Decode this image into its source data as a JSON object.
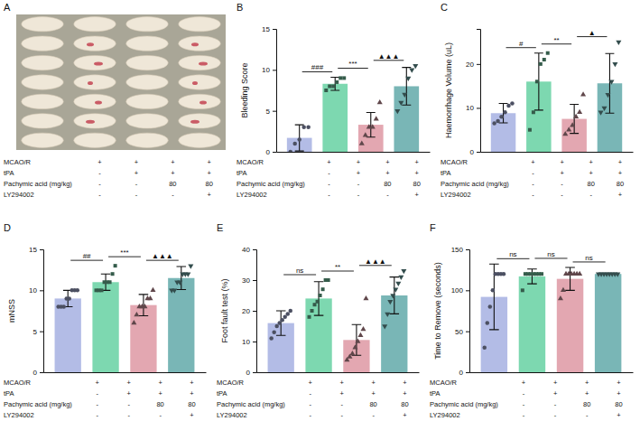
{
  "image_panel": {
    "panel": "A"
  },
  "conditions": {
    "rows": [
      {
        "label": "MCAO/R",
        "cells": [
          "+",
          "+",
          "+",
          "+"
        ]
      },
      {
        "label": "tPA",
        "cells": [
          "-",
          "+",
          "+",
          "+"
        ]
      },
      {
        "label": "Pachymic acid (mg/kg)",
        "cells": [
          "-",
          "-",
          "80",
          "80"
        ]
      },
      {
        "label": "LY294002",
        "cells": [
          "-",
          "-",
          "-",
          "+"
        ]
      }
    ]
  },
  "chart_data": [
    {
      "panel": "B",
      "type": "bar",
      "y_label": "Bleeding Score",
      "categories": [
        null,
        null,
        null,
        null
      ],
      "values": [
        1.7,
        8.3,
        3.3,
        8.0
      ],
      "errors": [
        1.6,
        0.8,
        1.5,
        2.3
      ],
      "points": [
        [
          0,
          1,
          1.5,
          3,
          3
        ],
        [
          7.5,
          8,
          8,
          8.5,
          9,
          9
        ],
        [
          1,
          2,
          3,
          3,
          4,
          6
        ],
        [
          5,
          6,
          7,
          9,
          10,
          10.5
        ]
      ],
      "colors": [
        "#b3bce6",
        "#7dd8b0",
        "#e3a7b1",
        "#79b6b6"
      ],
      "ylim": [
        0,
        15
      ],
      "yticks": [
        0,
        5,
        10,
        15
      ],
      "tick_labels": "y",
      "annotations": [
        {
          "from": 0,
          "to": 1,
          "label": "###"
        },
        {
          "from": 1,
          "to": 2,
          "label": "***"
        },
        {
          "from": 2,
          "to": 3,
          "label": "▲▲▲"
        }
      ]
    },
    {
      "panel": "C",
      "type": "bar",
      "y_label": "Haemorrhage Volume (uL)",
      "categories": [
        null,
        null,
        null,
        null
      ],
      "values": [
        8.8,
        16,
        7.5,
        15.6
      ],
      "errors": [
        2.2,
        6.5,
        3.3,
        6.8
      ],
      "points": [
        [
          6.5,
          7,
          8,
          9,
          10.5,
          11
        ],
        [
          5,
          9,
          16,
          20,
          21,
          22.5
        ],
        [
          4,
          5,
          6,
          8,
          9,
          13
        ],
        [
          9,
          10,
          13,
          16,
          20,
          25
        ]
      ],
      "colors": [
        "#b3bce6",
        "#7dd8b0",
        "#e3a7b1",
        "#79b6b6"
      ],
      "ylim": [
        0,
        28
      ],
      "yticks": [
        0,
        10,
        20
      ],
      "tick_labels": "y",
      "annotations": [
        {
          "from": 0,
          "to": 1,
          "label": "#"
        },
        {
          "from": 1,
          "to": 2,
          "label": "**"
        },
        {
          "from": 2,
          "to": 3,
          "label": "▲"
        }
      ]
    },
    {
      "panel": "D",
      "type": "bar",
      "y_label": "mNSS",
      "categories": [
        null,
        null,
        null,
        null
      ],
      "values": [
        9,
        11,
        8.2,
        11.5
      ],
      "errors": [
        1.0,
        1.0,
        1.3,
        1.4
      ],
      "points": [
        [
          8,
          8,
          8,
          9,
          9,
          10,
          10,
          10
        ],
        [
          10,
          10,
          10,
          11,
          11,
          11,
          12,
          13
        ],
        [
          6,
          7,
          8,
          8,
          8,
          9,
          9,
          10
        ],
        [
          10,
          10,
          11,
          11,
          12,
          12,
          12,
          13
        ]
      ],
      "colors": [
        "#b3bce6",
        "#7dd8b0",
        "#e3a7b1",
        "#79b6b6"
      ],
      "ylim": [
        0,
        15
      ],
      "yticks": [
        0,
        5,
        10,
        15
      ],
      "tick_labels": "y",
      "annotations": [
        {
          "from": 0,
          "to": 1,
          "label": "##"
        },
        {
          "from": 1,
          "to": 2,
          "label": "***"
        },
        {
          "from": 2,
          "to": 3,
          "label": "▲▲▲"
        }
      ]
    },
    {
      "panel": "E",
      "type": "bar",
      "y_label": "Foot fault test (%)",
      "categories": [
        null,
        null,
        null,
        null
      ],
      "values": [
        16,
        24,
        10.5,
        25
      ],
      "errors": [
        4,
        5.5,
        5,
        6
      ],
      "points": [
        [
          11,
          13,
          15,
          16,
          17,
          18,
          19,
          20
        ],
        [
          18,
          20,
          22,
          23,
          25,
          27,
          30,
          30
        ],
        [
          4,
          5,
          6,
          8,
          10,
          12,
          14,
          24
        ],
        [
          15,
          19,
          23,
          25,
          27,
          29,
          31,
          33
        ]
      ],
      "colors": [
        "#b3bce6",
        "#7dd8b0",
        "#e3a7b1",
        "#79b6b6"
      ],
      "ylim": [
        0,
        40
      ],
      "yticks": [
        0,
        10,
        20,
        30,
        40
      ],
      "tick_labels": "y",
      "annotations": [
        {
          "from": 0,
          "to": 1,
          "label": "ns"
        },
        {
          "from": 1,
          "to": 2,
          "label": "**"
        },
        {
          "from": 2,
          "to": 3,
          "label": "▲▲▲"
        }
      ]
    },
    {
      "panel": "F",
      "type": "bar",
      "y_label": "Time to Remove (seconds)",
      "categories": [
        null,
        null,
        null,
        null
      ],
      "values": [
        92,
        117,
        114,
        120
      ],
      "errors": [
        40,
        9,
        14,
        0
      ],
      "points": [
        [
          30,
          60,
          80,
          100,
          120,
          120,
          120,
          120
        ],
        [
          100,
          120,
          120,
          120,
          120,
          120,
          120,
          120
        ],
        [
          90,
          100,
          120,
          120,
          120,
          120,
          120,
          120
        ],
        [
          120,
          120,
          120,
          120,
          120,
          120,
          120,
          120
        ]
      ],
      "colors": [
        "#b3bce6",
        "#7dd8b0",
        "#e3a7b1",
        "#79b6b6"
      ],
      "ylim": [
        0,
        150
      ],
      "yticks": [
        0,
        50,
        100,
        150
      ],
      "tick_labels": "y",
      "annotations": [
        {
          "from": 0,
          "to": 1,
          "label": "ns"
        },
        {
          "from": 1,
          "to": 2,
          "label": "ns"
        },
        {
          "from": 2,
          "to": 3,
          "label": "ns"
        }
      ]
    }
  ]
}
